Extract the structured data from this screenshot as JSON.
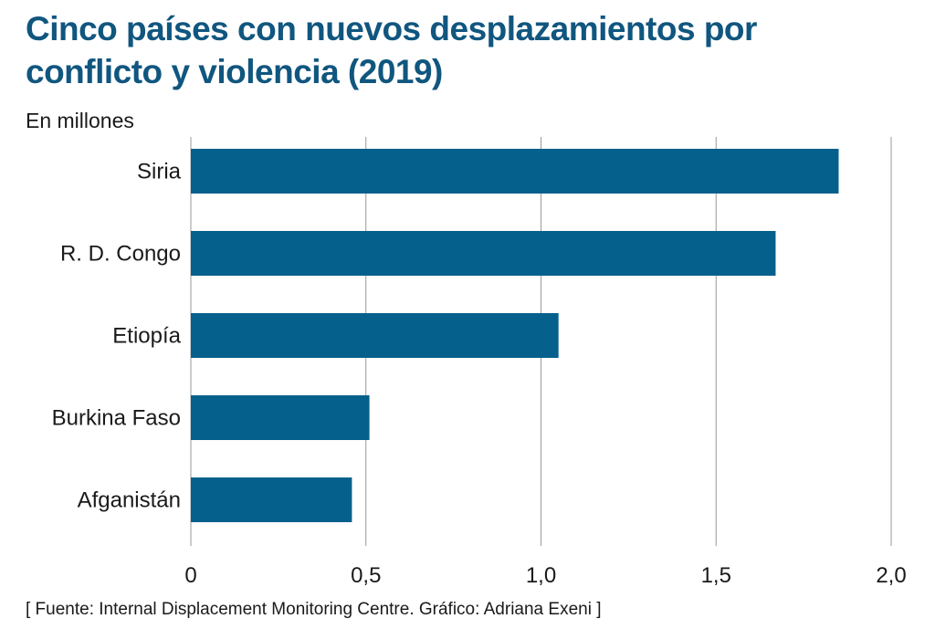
{
  "title": "Cinco países con nuevos desplazamientos por conflicto y violencia (2019)",
  "subtitle": "En millones",
  "source": "[ Fuente: Internal Displacement Monitoring Centre. Gráfico: Adriana Exeni ]",
  "colors": {
    "title": "#10567f",
    "bar": "#05608c",
    "grid": "#9a9a9a",
    "text": "#1a1a1a"
  },
  "chart_data": {
    "type": "bar",
    "orientation": "horizontal",
    "categories": [
      "Siria",
      "R. D. Congo",
      "Etiopía",
      "Burkina Faso",
      "Afganistán"
    ],
    "values": [
      1.85,
      1.67,
      1.05,
      0.51,
      0.46
    ],
    "xlim": [
      0,
      2.0
    ],
    "xticks": [
      0,
      0.5,
      1.0,
      1.5,
      2.0
    ],
    "xtick_labels": [
      "0",
      "0,5",
      "1,0",
      "1,5",
      "2,0"
    ],
    "ylabel": "En millones",
    "xlabel": "",
    "grid": true,
    "legend": "none"
  }
}
